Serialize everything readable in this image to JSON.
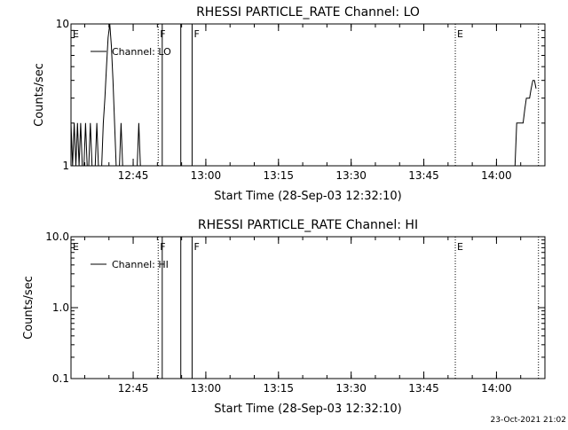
{
  "chart_data": [
    {
      "type": "line",
      "title": "RHESSI PARTICLE_RATE Channel: LO",
      "xlabel": "Start Time (28-Sep-03 12:32:10)",
      "ylabel": "Counts/sec",
      "yscale": "log",
      "ylim": [
        1,
        10
      ],
      "xlim": [
        "12:32:10",
        "14:10:00"
      ],
      "x_ticks": [
        "12:45",
        "13:00",
        "13:15",
        "13:30",
        "13:45",
        "14:00"
      ],
      "y_ticks": [
        "1",
        "10"
      ],
      "legend": {
        "label": "Channel: LO",
        "position": "top-left"
      },
      "series": [
        {
          "name": "Channel: LO",
          "x": [
            "12:32:10",
            "12:32:30",
            "12:32:50",
            "12:33:10",
            "12:33:30",
            "12:33:50",
            "12:34:10",
            "12:34:30",
            "12:34:50",
            "12:35:10",
            "12:35:30",
            "12:35:50",
            "12:36:10",
            "12:36:30",
            "12:36:50",
            "12:37:10",
            "12:37:30",
            "12:37:50",
            "12:38:10",
            "12:38:30",
            "12:38:50",
            "12:39:10",
            "12:39:30",
            "12:39:50",
            "12:40:10",
            "12:40:30",
            "12:40:50",
            "12:41:10",
            "12:41:30",
            "12:41:50",
            "12:42:10",
            "12:42:30",
            "12:42:50",
            "12:43:10",
            "12:43:30",
            "12:43:50",
            "12:44:10",
            "12:44:30",
            "12:44:50",
            "12:45:10",
            "12:45:30",
            "12:45:50",
            "12:46:10",
            "12:46:30",
            "12:46:50",
            "12:47:10",
            "12:47:30",
            "12:47:50",
            "12:48:10",
            "12:48:30",
            "12:48:50",
            "12:49:10",
            "12:49:30",
            "12:49:50",
            "12:50:10"
          ],
          "y": [
            2,
            1,
            2,
            1,
            2,
            1,
            2,
            1,
            1,
            2,
            1,
            1,
            2,
            1,
            1,
            1,
            2,
            1,
            1,
            1,
            2,
            3,
            5,
            8,
            10,
            7,
            4,
            2,
            1,
            1,
            1,
            2,
            1,
            1,
            1,
            1,
            1,
            1,
            1,
            1,
            1,
            1,
            2,
            1,
            1,
            1,
            1,
            1,
            1,
            1,
            1,
            1,
            1,
            1,
            1
          ]
        },
        {
          "name": "Channel: LO",
          "x": [
            "14:03:50",
            "14:04:10",
            "14:04:30",
            "14:04:50",
            "14:05:10",
            "14:05:30",
            "14:05:50",
            "14:06:10",
            "14:06:30",
            "14:06:50",
            "14:07:10",
            "14:07:30",
            "14:07:50",
            "14:08:10"
          ],
          "y": [
            1,
            2,
            2,
            2,
            2,
            2,
            2.5,
            3,
            3,
            3,
            3.5,
            4,
            4,
            3.5
          ]
        }
      ],
      "flags": [
        {
          "label": "E",
          "time": "12:32:10",
          "style": "dotted"
        },
        {
          "label": "F",
          "time": "12:50:10",
          "style": "dotted"
        },
        {
          "label": "",
          "time": "12:51:00",
          "style": "solid"
        },
        {
          "label": "",
          "time": "12:54:50",
          "style": "solid"
        },
        {
          "label": "F",
          "time": "12:57:10",
          "style": "solid"
        },
        {
          "label": "E",
          "time": "13:51:30",
          "style": "dotted"
        },
        {
          "label": "",
          "time": "14:08:40",
          "style": "dotted"
        }
      ]
    },
    {
      "type": "line",
      "title": "RHESSI PARTICLE_RATE Channel: HI",
      "xlabel": "Start Time (28-Sep-03 12:32:10)",
      "ylabel": "Counts/sec",
      "yscale": "log",
      "ylim": [
        0.1,
        10
      ],
      "xlim": [
        "12:32:10",
        "14:10:00"
      ],
      "x_ticks": [
        "12:45",
        "13:00",
        "13:15",
        "13:30",
        "13:45",
        "14:00"
      ],
      "y_ticks": [
        "0.1",
        "1.0",
        "10.0"
      ],
      "legend": {
        "label": "Channel: HI",
        "position": "top-left"
      },
      "series": [
        {
          "name": "Channel: HI",
          "x": [],
          "y": []
        }
      ],
      "flags": [
        {
          "label": "E",
          "time": "12:32:10",
          "style": "dotted"
        },
        {
          "label": "F",
          "time": "12:50:10",
          "style": "dotted"
        },
        {
          "label": "",
          "time": "12:51:00",
          "style": "solid"
        },
        {
          "label": "",
          "time": "12:54:50",
          "style": "solid"
        },
        {
          "label": "F",
          "time": "12:57:10",
          "style": "solid"
        },
        {
          "label": "E",
          "time": "13:51:30",
          "style": "dotted"
        },
        {
          "label": "",
          "time": "14:08:40",
          "style": "dotted"
        }
      ]
    }
  ],
  "footer": {
    "timestamp": "23-Oct-2021 21:02"
  }
}
